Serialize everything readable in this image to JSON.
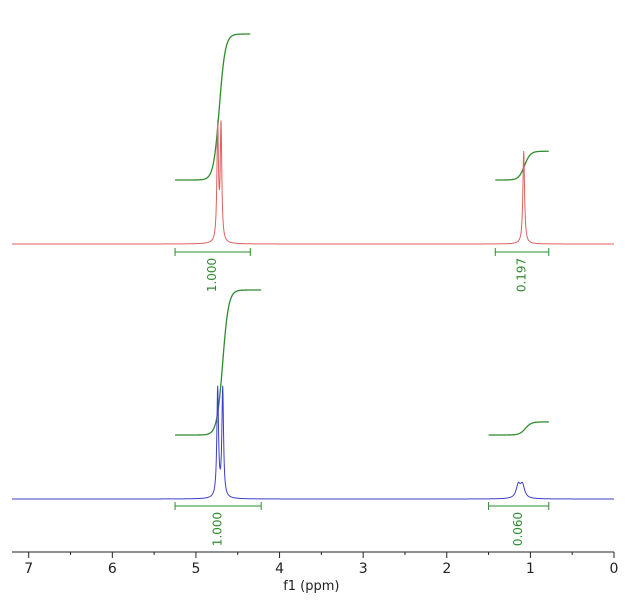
{
  "chart_data": {
    "type": "line",
    "title": "",
    "xlabel": "f1 (ppm)",
    "ylabel": "",
    "xlim": [
      7.2,
      0
    ],
    "x_ticks": [
      "7",
      "6",
      "5",
      "4",
      "3",
      "2",
      "1",
      "0"
    ],
    "x_tick_values": [
      7,
      6,
      5,
      4,
      3,
      2,
      1,
      0
    ],
    "x_reversed": true,
    "colors": {
      "spectrum_top": "#e06060",
      "spectrum_bottom": "#3d3dcc",
      "integral": "#2e8b2e",
      "axis": "#222222"
    },
    "spectra": [
      {
        "id": "top",
        "peaks": [
          {
            "center": 4.72,
            "split": 0.04,
            "width": 0.011,
            "height": 2.0,
            "clipped": true
          },
          {
            "center": 1.08,
            "split": 0.0,
            "width": 0.012,
            "height": 0.8,
            "clipped": false
          }
        ],
        "integrals": [
          {
            "from": 5.25,
            "to": 4.35,
            "value": "1.000",
            "step_center": 4.72
          },
          {
            "from": 1.42,
            "to": 0.78,
            "value": "0.197",
            "step_center": 1.07
          }
        ]
      },
      {
        "id": "bottom",
        "peaks": [
          {
            "center": 4.71,
            "split": 0.06,
            "width": 0.012,
            "height": 1.0,
            "clipped": false
          },
          {
            "center": 1.12,
            "split": 0.05,
            "width": 0.03,
            "height": 0.12,
            "clipped": false
          }
        ],
        "integrals": [
          {
            "from": 5.25,
            "to": 4.22,
            "value": "1.000",
            "step_center": 4.68
          },
          {
            "from": 1.5,
            "to": 0.78,
            "value": "0.060",
            "step_center": 1.06
          }
        ]
      }
    ]
  }
}
